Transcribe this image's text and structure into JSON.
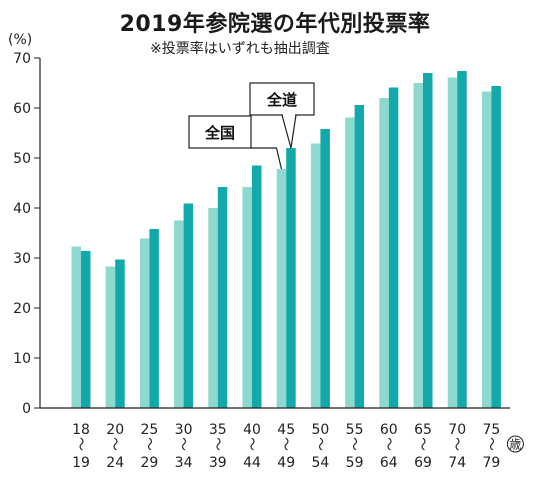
{
  "chart_data": {
    "type": "bar",
    "title": "2019年参院選の年代別投票率",
    "subtitle": "※投票率はいずれも抽出調査",
    "y_unit": "(%)",
    "x_unit": "歳",
    "ylim": [
      0,
      70
    ],
    "yticks": [
      "0",
      "10",
      "20",
      "30",
      "40",
      "50",
      "60",
      "70"
    ],
    "grid": false,
    "categories": [
      {
        "from": "18",
        "to": "19"
      },
      {
        "from": "20",
        "to": "24"
      },
      {
        "from": "25",
        "to": "29"
      },
      {
        "from": "30",
        "to": "34"
      },
      {
        "from": "35",
        "to": "39"
      },
      {
        "from": "40",
        "to": "44"
      },
      {
        "from": "45",
        "to": "49"
      },
      {
        "from": "50",
        "to": "54"
      },
      {
        "from": "55",
        "to": "59"
      },
      {
        "from": "60",
        "to": "64"
      },
      {
        "from": "65",
        "to": "69"
      },
      {
        "from": "70",
        "to": "74"
      },
      {
        "from": "75",
        "to": "79"
      }
    ],
    "range_mark": "〜",
    "series": [
      {
        "name": "全国",
        "color": "#8ed9cf",
        "values": [
          32.3,
          28.3,
          33.9,
          37.5,
          40.0,
          44.2,
          47.8,
          52.9,
          58.1,
          62.0,
          65.0,
          66.1,
          63.3
        ]
      },
      {
        "name": "全道",
        "color": "#13a9aa",
        "values": [
          31.4,
          29.7,
          35.8,
          40.9,
          44.2,
          48.5,
          52.0,
          55.8,
          60.6,
          64.1,
          67.0,
          67.4,
          64.4
        ]
      }
    ],
    "annotations": [
      {
        "text": "全国",
        "series": 0,
        "category_index": 6
      },
      {
        "text": "全道",
        "series": 1,
        "category_index": 6
      }
    ]
  }
}
